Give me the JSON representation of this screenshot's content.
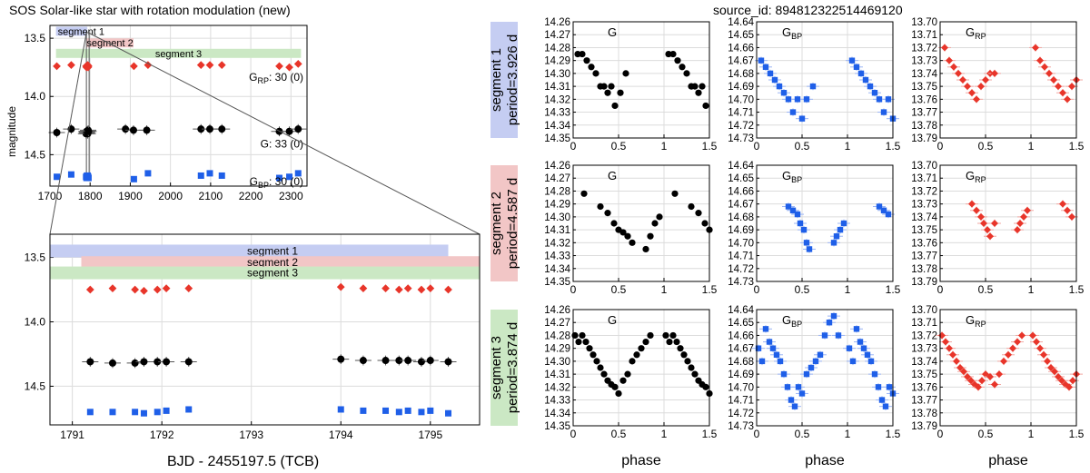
{
  "title": "SOS Solar-like star with rotation modulation  (new)",
  "source_label": "source_id: 894812322514469120",
  "colors": {
    "G": "#000000",
    "BP": "#1f5fe8",
    "RP": "#e8352a",
    "seg1": "#c5cdf2",
    "seg2": "#f2c6c6",
    "seg3": "#cbe8c4",
    "grid": "#dcdcdc"
  },
  "main_panel": {
    "ylabel": "magnitude",
    "xlim": [
      1700,
      2340
    ],
    "ylim": [
      13.39,
      14.77
    ],
    "xticks": [
      "1700",
      "1800",
      "1900",
      "2000",
      "2100",
      "2200",
      "2300"
    ],
    "yticks": [
      "13.5",
      "14.0",
      "14.5"
    ],
    "segments": [
      {
        "label": "segment 1",
        "x0": 1715,
        "x1": 1793,
        "mag": 13.44
      },
      {
        "label": "segment 2",
        "x0": 1791,
        "x1": 1908,
        "mag": 13.54
      },
      {
        "label": "segment 3",
        "x0": 1715,
        "x1": 2325,
        "mag": 13.63
      }
    ],
    "count_labels": {
      "RP": "G_RP: 30 (0)",
      "G": "G: 33 (0)",
      "BP": "G_BP: 30 (0)"
    },
    "series": {
      "RP": {
        "t": [
          1717,
          1753,
          1790,
          1791,
          1792,
          1793,
          1794,
          1795,
          1796,
          1909,
          1944,
          2076,
          2098,
          2128,
          2271,
          2296,
          2318
        ],
        "mag": [
          13.74,
          13.73,
          13.74,
          13.75,
          13.74,
          13.74,
          13.73,
          13.75,
          13.74,
          13.74,
          13.73,
          13.73,
          13.73,
          13.73,
          13.74,
          13.75,
          13.72
        ]
      },
      "G": {
        "t": [
          1717,
          1753,
          1790,
          1791,
          1792,
          1793,
          1794,
          1795,
          1796,
          1888,
          1908,
          1941,
          2076,
          2098,
          2128,
          2271,
          2296,
          2318
        ],
        "mag": [
          14.31,
          14.28,
          14.32,
          14.3,
          14.31,
          14.3,
          14.32,
          14.29,
          14.3,
          14.28,
          14.29,
          14.29,
          14.28,
          14.28,
          14.28,
          14.3,
          14.3,
          14.28
        ]
      },
      "BP": {
        "t": [
          1717,
          1753,
          1790,
          1791,
          1792,
          1793,
          1794,
          1795,
          1796,
          1909,
          1944,
          2076,
          2098,
          2128,
          2271,
          2296,
          2318
        ],
        "mag": [
          14.69,
          14.67,
          14.69,
          14.7,
          14.68,
          14.69,
          14.68,
          14.69,
          14.7,
          14.71,
          14.66,
          14.68,
          14.66,
          14.68,
          14.7,
          14.69,
          14.66
        ]
      }
    }
  },
  "zoom_panel": {
    "xlabel": "BJD - 2455197.5 (TCB)",
    "xlim": [
      1790.75,
      1795.55
    ],
    "ylim": [
      13.32,
      14.8
    ],
    "xticks": [
      "1791",
      "1792",
      "1793",
      "1794",
      "1795"
    ],
    "yticks": [
      "13.5",
      "14.0",
      "14.5"
    ],
    "segments": [
      {
        "label": "segment 1",
        "x0": 1790.75,
        "x1": 1795.2,
        "mag": 13.45
      },
      {
        "label": "segment 2",
        "x0": 1791.1,
        "x1": 1795.55,
        "mag": 13.54
      },
      {
        "label": "segment 3",
        "x0": 1790.75,
        "x1": 1795.55,
        "mag": 13.62
      }
    ],
    "series": {
      "RP": {
        "t": [
          1791.2,
          1791.45,
          1791.7,
          1791.8,
          1791.95,
          1792.05,
          1792.3,
          1794.0,
          1794.25,
          1794.5,
          1794.65,
          1794.75,
          1794.9,
          1795.0,
          1795.2
        ],
        "mag": [
          13.75,
          13.74,
          13.75,
          13.76,
          13.75,
          13.74,
          13.74,
          13.73,
          13.74,
          13.74,
          13.75,
          13.74,
          13.75,
          13.74,
          13.75
        ]
      },
      "G": {
        "t": [
          1791.2,
          1791.45,
          1791.7,
          1791.8,
          1791.95,
          1792.05,
          1792.3,
          1794.0,
          1794.25,
          1794.5,
          1794.65,
          1794.75,
          1794.9,
          1795.0,
          1795.2
        ],
        "mag": [
          14.31,
          14.32,
          14.32,
          14.31,
          14.31,
          14.31,
          14.31,
          14.29,
          14.3,
          14.3,
          14.3,
          14.3,
          14.31,
          14.3,
          14.31
        ]
      },
      "BP": {
        "t": [
          1791.2,
          1791.45,
          1791.7,
          1791.8,
          1791.95,
          1792.05,
          1792.3,
          1794.0,
          1794.25,
          1794.5,
          1794.65,
          1794.75,
          1794.9,
          1795.0,
          1795.2
        ],
        "mag": [
          14.7,
          14.7,
          14.7,
          14.71,
          14.7,
          14.69,
          14.68,
          14.68,
          14.69,
          14.69,
          14.7,
          14.69,
          14.7,
          14.69,
          14.71
        ]
      }
    }
  },
  "phase_grid": {
    "xlabel": "phase",
    "xlim": [
      0,
      1.5
    ],
    "xticks": [
      "0",
      "0.5",
      "1",
      "1.5"
    ],
    "band_labels": {
      "G": "G",
      "BP": "G_BP",
      "RP": "G_RP"
    },
    "band_ranges": {
      "G": {
        "ylim": [
          14.26,
          14.35
        ],
        "yticks": [
          "14.26",
          "14.27",
          "14.28",
          "14.29",
          "14.30",
          "14.31",
          "14.32",
          "14.33",
          "14.34",
          "14.35"
        ]
      },
      "BP": {
        "ylim": [
          14.64,
          14.73
        ],
        "yticks": [
          "14.64",
          "14.65",
          "14.66",
          "14.67",
          "14.68",
          "14.69",
          "14.70",
          "14.71",
          "14.72",
          "14.73"
        ]
      },
      "RP": {
        "ylim": [
          13.7,
          13.79
        ],
        "yticks": [
          "13.70",
          "13.71",
          "13.72",
          "13.73",
          "13.74",
          "13.75",
          "13.76",
          "13.77",
          "13.78",
          "13.79"
        ]
      }
    },
    "rows": [
      {
        "seg": "segment 1",
        "period_label": "period=3.926 d",
        "color": "#c5cdf2",
        "G": {
          "phase": [
            0.05,
            0.1,
            0.15,
            0.2,
            0.25,
            0.3,
            0.34,
            0.38,
            0.42,
            0.46,
            0.52,
            0.58,
            1.05,
            1.1,
            1.15,
            1.2,
            1.25,
            1.3,
            1.34,
            1.38,
            1.42,
            1.46
          ],
          "mag": [
            14.285,
            14.285,
            14.29,
            14.295,
            14.3,
            14.31,
            14.31,
            14.315,
            14.31,
            14.325,
            14.315,
            14.3,
            14.285,
            14.285,
            14.29,
            14.295,
            14.3,
            14.31,
            14.31,
            14.315,
            14.31,
            14.325
          ]
        },
        "BP": {
          "phase": [
            0.05,
            0.1,
            0.15,
            0.2,
            0.25,
            0.3,
            0.35,
            0.4,
            0.45,
            0.5,
            0.55,
            0.62,
            1.05,
            1.1,
            1.15,
            1.2,
            1.25,
            1.3,
            1.35,
            1.4,
            1.45,
            1.5
          ],
          "mag": [
            14.67,
            14.675,
            14.68,
            14.685,
            14.69,
            14.695,
            14.7,
            14.71,
            14.7,
            14.715,
            14.7,
            14.69,
            14.67,
            14.675,
            14.68,
            14.685,
            14.69,
            14.695,
            14.7,
            14.71,
            14.7,
            14.715
          ]
        },
        "RP": {
          "phase": [
            0.05,
            0.1,
            0.15,
            0.2,
            0.25,
            0.3,
            0.35,
            0.4,
            0.45,
            0.5,
            0.55,
            0.6,
            1.05,
            1.1,
            1.15,
            1.2,
            1.25,
            1.3,
            1.35,
            1.4,
            1.45,
            1.5
          ],
          "mag": [
            13.72,
            13.73,
            13.735,
            13.74,
            13.745,
            13.75,
            13.755,
            13.76,
            13.75,
            13.745,
            13.74,
            13.74,
            13.72,
            13.73,
            13.735,
            13.74,
            13.745,
            13.75,
            13.755,
            13.76,
            13.75,
            13.745
          ]
        }
      },
      {
        "seg": "segment 2",
        "period_label": "period=4.587 d",
        "color": "#f2c6c6",
        "G": {
          "phase": [
            0.12,
            0.3,
            0.38,
            0.45,
            0.5,
            0.55,
            0.6,
            0.65,
            0.8,
            0.85,
            0.9,
            0.95,
            1.12,
            1.3,
            1.38,
            1.45,
            1.5
          ],
          "mag": [
            14.282,
            14.292,
            14.297,
            14.305,
            14.31,
            14.312,
            14.315,
            14.32,
            14.325,
            14.315,
            14.305,
            14.3,
            14.282,
            14.292,
            14.297,
            14.305,
            14.31
          ]
        },
        "BP": {
          "phase": [
            0.35,
            0.4,
            0.45,
            0.48,
            0.52,
            0.55,
            0.58,
            0.85,
            0.88,
            0.92,
            0.96,
            1.35,
            1.4,
            1.45
          ],
          "mag": [
            14.672,
            14.675,
            14.678,
            14.685,
            14.69,
            14.7,
            14.705,
            14.7,
            14.695,
            14.69,
            14.685,
            14.672,
            14.675,
            14.678
          ]
        },
        "RP": {
          "phase": [
            0.35,
            0.4,
            0.45,
            0.48,
            0.52,
            0.55,
            0.6,
            0.85,
            0.88,
            0.92,
            0.96,
            1.35,
            1.4,
            1.45
          ],
          "mag": [
            13.73,
            13.735,
            13.74,
            13.745,
            13.75,
            13.755,
            13.745,
            13.75,
            13.745,
            13.74,
            13.735,
            13.73,
            13.735,
            13.74
          ]
        }
      },
      {
        "seg": "segment 3",
        "period_label": "period=3.874 d",
        "color": "#cbe8c4",
        "G": {
          "phase": [
            0.02,
            0.06,
            0.1,
            0.14,
            0.18,
            0.22,
            0.26,
            0.3,
            0.34,
            0.38,
            0.42,
            0.46,
            0.5,
            0.55,
            0.6,
            0.65,
            0.7,
            0.75,
            0.8,
            0.85,
            1.02,
            1.06,
            1.1,
            1.14,
            1.18,
            1.22,
            1.26,
            1.3,
            1.34,
            1.38,
            1.42,
            1.46,
            1.5
          ],
          "mag": [
            14.28,
            14.285,
            14.28,
            14.285,
            14.29,
            14.295,
            14.3,
            14.305,
            14.31,
            14.315,
            14.318,
            14.32,
            14.325,
            14.315,
            14.31,
            14.3,
            14.295,
            14.29,
            14.285,
            14.28,
            14.28,
            14.285,
            14.28,
            14.285,
            14.29,
            14.295,
            14.3,
            14.305,
            14.31,
            14.315,
            14.318,
            14.32,
            14.325
          ]
        },
        "BP": {
          "phase": [
            0.02,
            0.06,
            0.1,
            0.14,
            0.18,
            0.22,
            0.26,
            0.3,
            0.34,
            0.38,
            0.42,
            0.46,
            0.5,
            0.55,
            0.6,
            0.65,
            0.7,
            0.75,
            0.8,
            0.85,
            0.9,
            1.02,
            1.06,
            1.1,
            1.14,
            1.18,
            1.22,
            1.26,
            1.3,
            1.34,
            1.38,
            1.42,
            1.46,
            1.5
          ],
          "mag": [
            14.67,
            14.68,
            14.655,
            14.665,
            14.67,
            14.675,
            14.68,
            14.69,
            14.7,
            14.71,
            14.715,
            14.7,
            14.705,
            14.69,
            14.685,
            14.68,
            14.675,
            14.66,
            14.65,
            14.645,
            14.66,
            14.67,
            14.68,
            14.655,
            14.665,
            14.67,
            14.675,
            14.68,
            14.69,
            14.7,
            14.71,
            14.715,
            14.7,
            14.705
          ]
        },
        "RP": {
          "phase": [
            0.02,
            0.06,
            0.1,
            0.14,
            0.18,
            0.22,
            0.26,
            0.3,
            0.34,
            0.38,
            0.42,
            0.46,
            0.5,
            0.55,
            0.6,
            0.65,
            0.7,
            0.75,
            0.8,
            0.85,
            0.9,
            1.02,
            1.06,
            1.1,
            1.14,
            1.18,
            1.22,
            1.26,
            1.3,
            1.34,
            1.38,
            1.42,
            1.46,
            1.5
          ],
          "mag": [
            13.72,
            13.725,
            13.73,
            13.735,
            13.74,
            13.745,
            13.748,
            13.752,
            13.755,
            13.758,
            13.76,
            13.755,
            13.75,
            13.752,
            13.758,
            13.75,
            13.74,
            13.735,
            13.73,
            13.725,
            13.72,
            13.72,
            13.725,
            13.73,
            13.735,
            13.74,
            13.745,
            13.748,
            13.752,
            13.755,
            13.758,
            13.76,
            13.755,
            13.75
          ]
        }
      }
    ]
  },
  "chart_data": [
    {
      "type": "scatter",
      "title": "SOS Solar-like star with rotation modulation  (new)",
      "xlabel": "",
      "ylabel": "magnitude",
      "xlim": [
        1700,
        2340
      ],
      "ylim": [
        14.77,
        13.39
      ],
      "series": [
        {
          "name": "G_RP"
        },
        {
          "name": "G"
        },
        {
          "name": "G_BP"
        }
      ]
    },
    {
      "type": "scatter",
      "title": "",
      "xlabel": "BJD - 2455197.5 (TCB)",
      "ylabel": "",
      "xlim": [
        1790.75,
        1795.55
      ],
      "ylim": [
        14.8,
        13.32
      ],
      "series": [
        {
          "name": "G_RP"
        },
        {
          "name": "G"
        },
        {
          "name": "G_BP"
        }
      ]
    },
    {
      "type": "scatter",
      "title": "source_id: 894812322514469120",
      "xlabel": "phase",
      "ylabel": "",
      "series": [
        {
          "name": "G"
        },
        {
          "name": "G_BP"
        },
        {
          "name": "G_RP"
        }
      ]
    }
  ]
}
